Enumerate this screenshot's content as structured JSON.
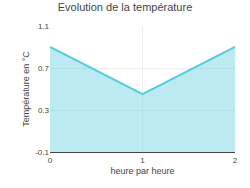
{
  "chart_data": {
    "type": "area",
    "title": "Evolution de la température",
    "x_label": "heure par heure",
    "y_label": "Température en °C",
    "x": [
      0,
      1,
      2
    ],
    "series": [
      {
        "values": [
          0.9,
          0.45,
          0.9
        ],
        "color": "#55ccdd"
      }
    ],
    "xlim": [
      0,
      2
    ],
    "xticks": [
      0,
      1,
      2
    ],
    "ylim": [
      -0.1,
      1.1
    ],
    "yticks": [
      -0.1,
      0.3,
      0.7,
      1.1
    ],
    "grid": true
  }
}
